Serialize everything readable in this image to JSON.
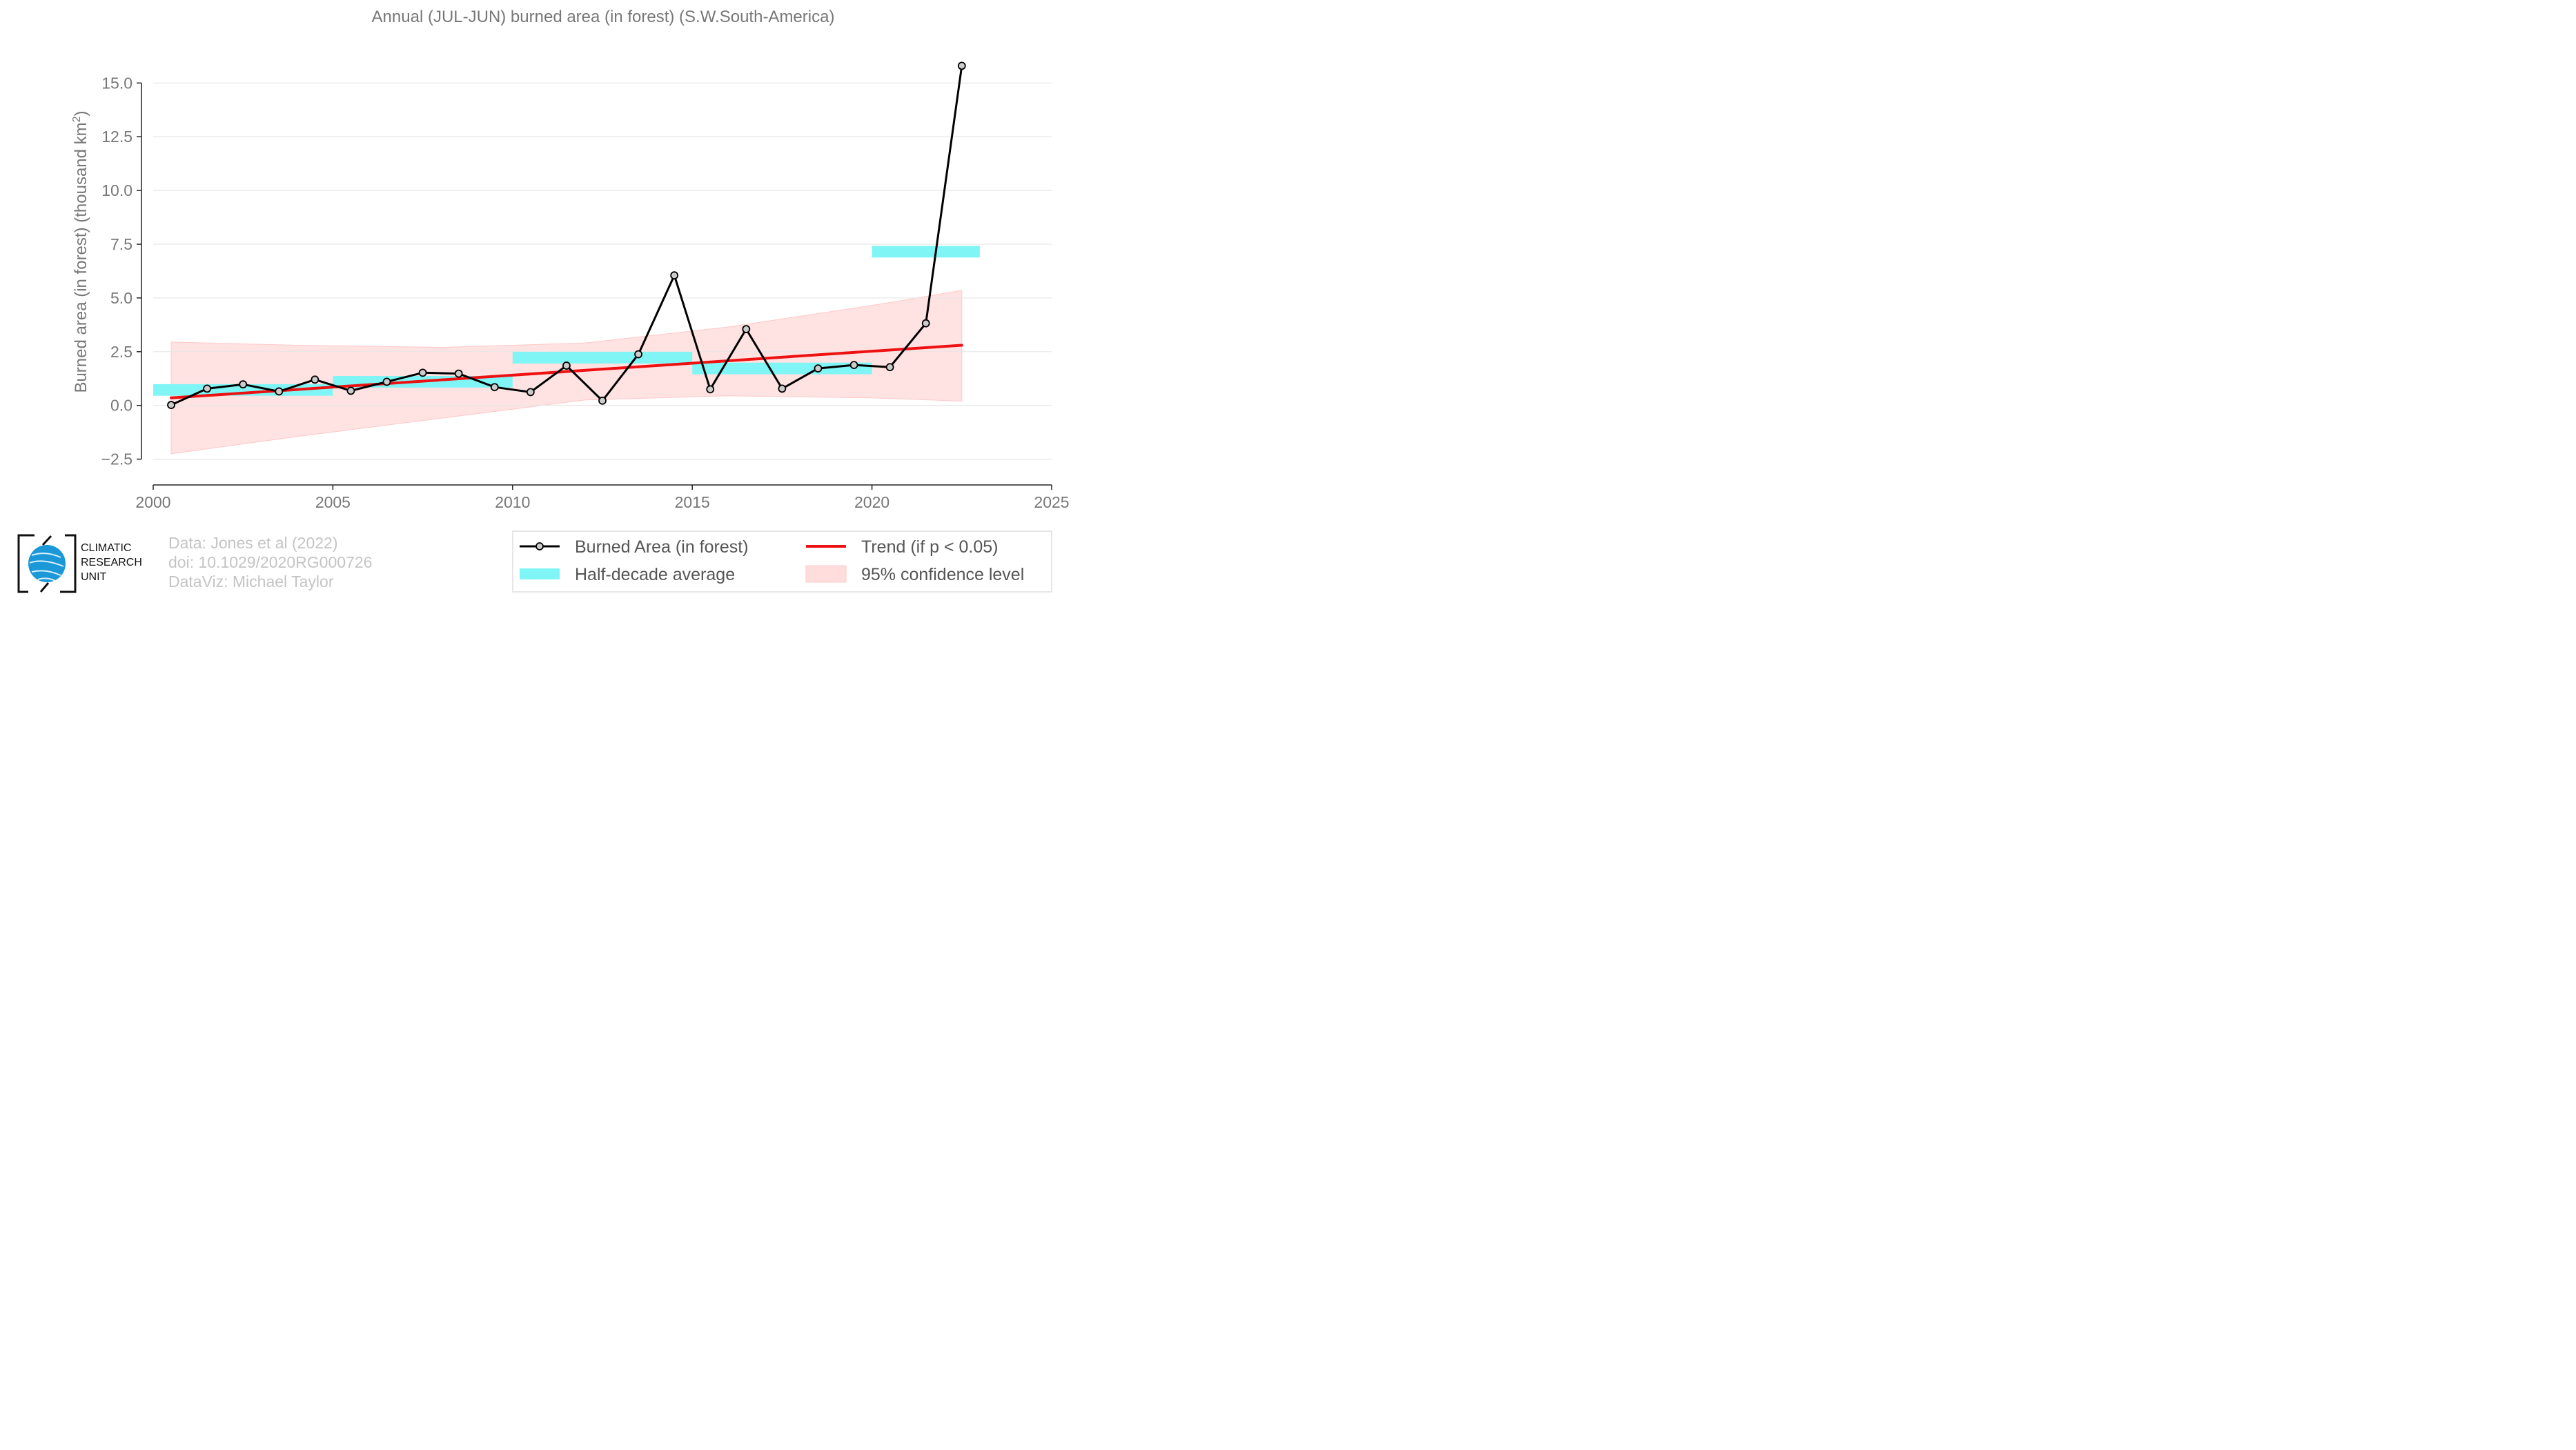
{
  "chart_data": {
    "type": "line",
    "title": "Annual (JUL-JUN) burned area (in forest) (S.W.South-America)",
    "ylabel": "Burned area (in forest) (thousand km",
    "ylabel_sup": "2",
    "ylabel_close": ")",
    "xlim": [
      2000,
      2025
    ],
    "ylim": [
      -3.7,
      17
    ],
    "x_ticks": [
      2000,
      2005,
      2010,
      2015,
      2020,
      2025
    ],
    "x_tick_labels": [
      "2000",
      "2005",
      "2010",
      "2015",
      "2020",
      "2025"
    ],
    "y_ticks": [
      -2.5,
      0,
      2.5,
      5,
      7.5,
      10,
      12.5,
      15
    ],
    "y_tick_labels": [
      "−2.5",
      "0.0",
      "2.5",
      "5.0",
      "7.5",
      "10.0",
      "12.5",
      "15.0"
    ],
    "grid": "horizontal",
    "legend_position": "bottom-right",
    "series": [
      {
        "name": "Burned Area (in forest)",
        "color": "#000000",
        "x": [
          2000.5,
          2001.5,
          2002.5,
          2003.5,
          2004.5,
          2005.5,
          2006.5,
          2007.5,
          2008.5,
          2009.5,
          2010.5,
          2011.5,
          2012.5,
          2013.5,
          2014.5,
          2015.5,
          2016.5,
          2017.5,
          2018.5,
          2019.5,
          2020.5,
          2021.5,
          2022.5
        ],
        "y": [
          0.02,
          0.78,
          0.98,
          0.65,
          1.2,
          0.68,
          1.1,
          1.52,
          1.48,
          0.85,
          0.62,
          1.85,
          0.22,
          2.38,
          6.05,
          0.75,
          3.55,
          0.78,
          1.72,
          1.88,
          1.78,
          3.82,
          15.8
        ]
      },
      {
        "name": "Half-decade average",
        "color": "#7ff5f5",
        "segments": [
          {
            "x0": 2000,
            "x1": 2005,
            "value": 0.72
          },
          {
            "x0": 2005,
            "x1": 2010,
            "value": 1.1
          },
          {
            "x0": 2010,
            "x1": 2015,
            "value": 2.22
          },
          {
            "x0": 2015,
            "x1": 2020,
            "value": 1.72
          },
          {
            "x0": 2020,
            "x1": 2023,
            "value": 7.15
          }
        ],
        "band_half_height": 0.27
      },
      {
        "name": "Trend (if p < 0.05)",
        "color": "#ee1111",
        "x": [
          2000.5,
          2022.5
        ],
        "y": [
          0.35,
          2.8
        ]
      },
      {
        "name": "95% confidence level",
        "color": "#ffdddd",
        "x": [
          2000.5,
          2004,
          2008,
          2012,
          2016,
          2020,
          2022.5
        ],
        "upper": [
          2.95,
          2.8,
          2.7,
          2.9,
          3.65,
          4.65,
          5.35
        ],
        "lower": [
          -2.25,
          -1.45,
          -0.6,
          0.25,
          0.45,
          0.35,
          0.2
        ]
      }
    ]
  },
  "legend": [
    {
      "label": "Burned Area (in forest)",
      "kind": "line-marker",
      "color": "#000000"
    },
    {
      "label": "Trend (if p < 0.05)",
      "kind": "line",
      "color": "#ee1111"
    },
    {
      "label": "Half-decade average",
      "kind": "band",
      "color": "#7ff5f5"
    },
    {
      "label": "95% confidence level",
      "kind": "fill",
      "color": "#ffdddd"
    }
  ],
  "credits": {
    "line1": "Data: Jones et al (2022)",
    "line2": "doi: 10.1029/2020RG000726",
    "line3": "DataViz: Michael Taylor"
  },
  "logo": {
    "line1": "CLIMATIC",
    "line2": "RESEARCH",
    "line3": "UNIT",
    "globe_color": "#1a98d8"
  }
}
